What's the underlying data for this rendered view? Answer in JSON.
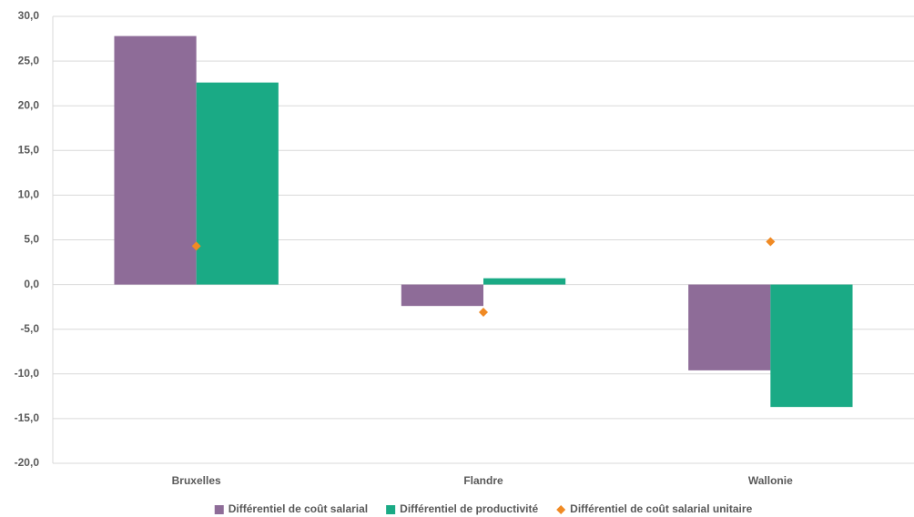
{
  "chart_data": {
    "type": "bar",
    "categories": [
      "Bruxelles",
      "Flandre",
      "Wallonie"
    ],
    "series": [
      {
        "name": "Différentiel de coût salarial",
        "type": "bar",
        "color": "#8e6c98",
        "values": [
          27.8,
          -2.4,
          -9.6
        ]
      },
      {
        "name": "Différentiel de productivité",
        "type": "bar",
        "color": "#1aaa85",
        "values": [
          22.6,
          0.7,
          -13.7
        ]
      },
      {
        "name": "Différentiel de coût salarial unitaire",
        "type": "scatter",
        "color": "#f08a24",
        "values": [
          4.3,
          -3.1,
          4.8
        ]
      }
    ],
    "ylim": [
      -20,
      30
    ],
    "yticks": [
      {
        "value": -20,
        "label": "-20,0"
      },
      {
        "value": -15,
        "label": "-15,0"
      },
      {
        "value": -10,
        "label": "-10,0"
      },
      {
        "value": -5,
        "label": "-5,0"
      },
      {
        "value": 0,
        "label": "0,0"
      },
      {
        "value": 5,
        "label": "5,0"
      },
      {
        "value": 10,
        "label": "10,0"
      },
      {
        "value": 15,
        "label": "15,0"
      },
      {
        "value": 20,
        "label": "20,0"
      },
      {
        "value": 25,
        "label": "25,0"
      },
      {
        "value": 30,
        "label": "30,0"
      }
    ],
    "grid": true,
    "legend": "bottom"
  }
}
